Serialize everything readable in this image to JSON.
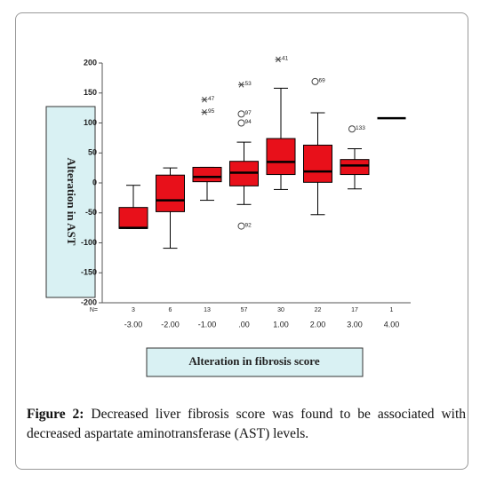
{
  "chart_data": {
    "type": "box",
    "categories": [
      "-3.00",
      "-2.00",
      "-1.00",
      ".00",
      "1.00",
      "2.00",
      "3.00",
      "4.00"
    ],
    "n_label": "N=",
    "n": [
      3,
      6,
      13,
      57,
      30,
      22,
      17,
      1
    ],
    "whisker_low": [
      -76,
      -109,
      -29,
      -36,
      -11,
      -53,
      -10,
      null
    ],
    "q1": [
      -76,
      -48,
      2,
      -5,
      14,
      1,
      14,
      null
    ],
    "median": [
      -75,
      -29,
      10,
      17,
      35,
      19,
      29,
      108
    ],
    "q3": [
      -41,
      13,
      26,
      36,
      74,
      63,
      39,
      null
    ],
    "whisker_high": [
      -4,
      25,
      26,
      68,
      158,
      117,
      57,
      null
    ],
    "color": "#e8101a",
    "outliers": [
      {
        "category": 2,
        "value": 139,
        "label": "47",
        "marker": "asterisk"
      },
      {
        "category": 2,
        "value": 118,
        "label": "95",
        "marker": "asterisk"
      },
      {
        "category": 3,
        "value": 164,
        "label": "53",
        "marker": "asterisk"
      },
      {
        "category": 3,
        "value": 115,
        "label": "97",
        "marker": "circle"
      },
      {
        "category": 3,
        "value": 100,
        "label": "94",
        "marker": "circle"
      },
      {
        "category": 3,
        "value": -72,
        "label": "92",
        "marker": "circle"
      },
      {
        "category": 4,
        "value": 206,
        "label": "41",
        "marker": "asterisk"
      },
      {
        "category": 5,
        "value": 169,
        "label": "69",
        "marker": "circle"
      },
      {
        "category": 6,
        "value": 90,
        "label": "133",
        "marker": "circle"
      }
    ],
    "ylim": [
      -200,
      200
    ],
    "yticks": [
      200,
      150,
      100,
      50,
      0,
      -50,
      -100,
      -150,
      -200
    ],
    "y_label": "Alteration in AST",
    "x_label": "Alteration in fibrosis score"
  },
  "caption": {
    "label": "Figure 2:",
    "text": "Decreased liver fibrosis score was found to be associated with decreased aspartate aminotransferase (AST) levels."
  }
}
